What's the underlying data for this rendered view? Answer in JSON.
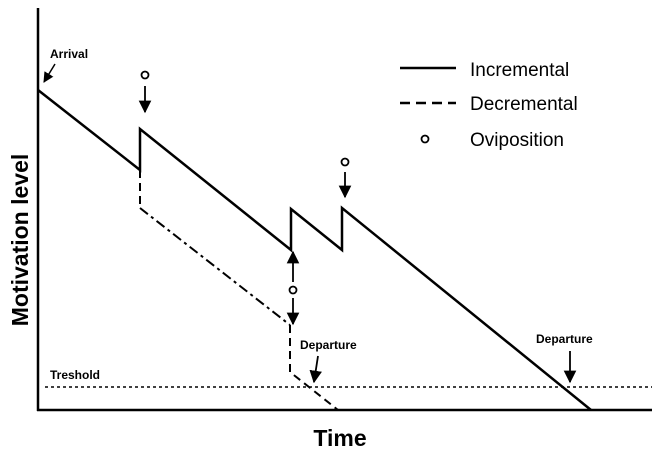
{
  "axes": {
    "x_label": "Time",
    "y_label": "Motivation level"
  },
  "legend": [
    {
      "label": "Incremental"
    },
    {
      "label": "Decremental"
    },
    {
      "label": "Oviposition"
    }
  ],
  "annotations": {
    "arrival": "Arrival",
    "threshold": "Treshold",
    "departures": [
      "Departure",
      "Departure"
    ]
  }
}
